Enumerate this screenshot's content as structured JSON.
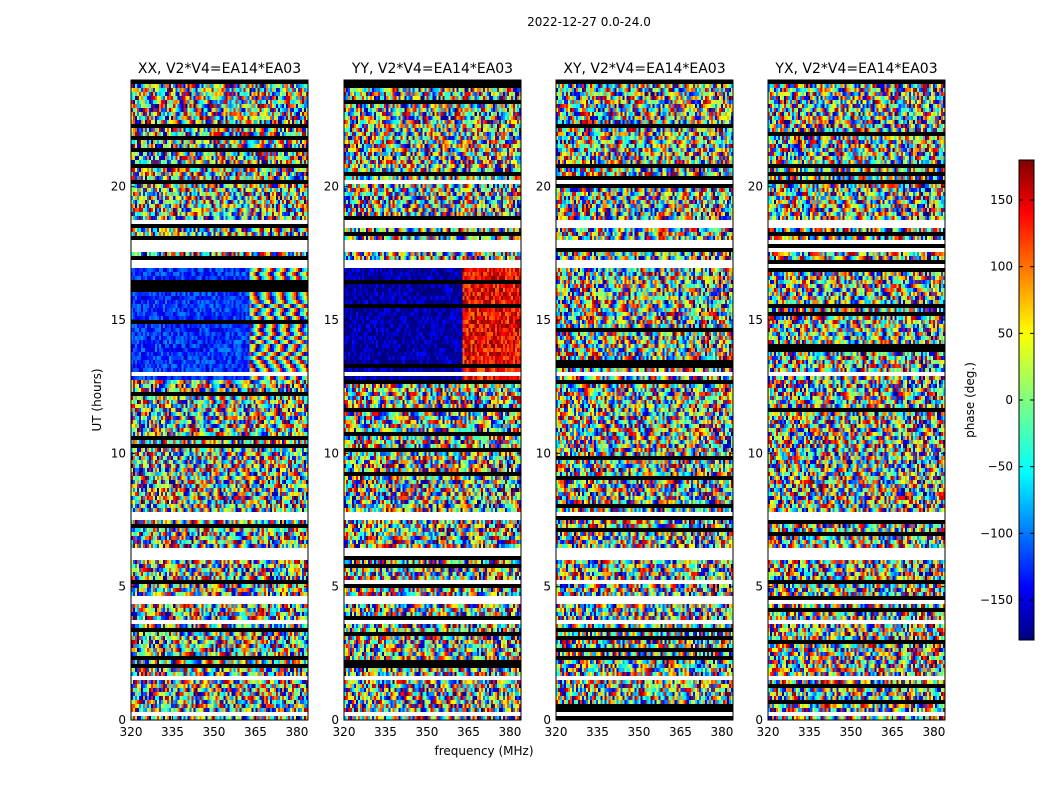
{
  "chart_data": {
    "type": "heatmap",
    "suptitle": "2022-12-27 0.0-24.0",
    "xlabel": "frequency (MHz)",
    "ylabel": "UT (hours)",
    "xlim": [
      320,
      384
    ],
    "ylim": [
      0,
      24
    ],
    "xticks": [
      320,
      335,
      350,
      365,
      380
    ],
    "yticks": [
      0,
      5,
      10,
      15,
      20
    ],
    "panels": [
      {
        "title": "XX, V2*V4=EA14*EA03",
        "pol": "XX",
        "show_ylabel": true,
        "region": {
          "t": [
            12.7,
            17.0
          ],
          "f_split": 363,
          "left_phase": -125,
          "right_phase": "wrapped"
        }
      },
      {
        "title": "YY, V2*V4=EA14*EA03",
        "pol": "YY",
        "show_ylabel": true,
        "region": {
          "t": [
            12.7,
            17.0
          ],
          "f_split": 363,
          "left_phase": -170,
          "right_phase": 140
        }
      },
      {
        "title": "XY, V2*V4=EA14*EA03",
        "pol": "XY",
        "show_ylabel": true,
        "region": null
      },
      {
        "title": "YX, V2*V4=EA14*EA03",
        "pol": "YX",
        "show_ylabel": true,
        "region": null
      }
    ],
    "blank_bands_hours": [
      [
        0.15,
        0.25
      ],
      [
        1.5,
        1.6
      ],
      [
        3.6,
        3.75
      ],
      [
        4.4,
        4.55
      ],
      [
        5.15,
        5.25
      ],
      [
        6.0,
        6.3
      ],
      [
        7.6,
        7.75
      ],
      [
        12.9,
        13.0
      ],
      [
        17.0,
        17.2
      ],
      [
        17.6,
        18.0
      ],
      [
        18.5,
        18.6
      ],
      [
        20.1,
        20.25
      ]
    ],
    "colorbar": {
      "label": "phase (deg.)",
      "range": [
        -180,
        180
      ],
      "ticks": [
        150,
        100,
        50,
        0,
        -50,
        -100,
        -150
      ],
      "colormap": "jet",
      "stops": [
        "#00007f",
        "#0000ff",
        "#00ffff",
        "#7fff7f",
        "#ffff00",
        "#ff0000",
        "#7f0000"
      ]
    }
  }
}
